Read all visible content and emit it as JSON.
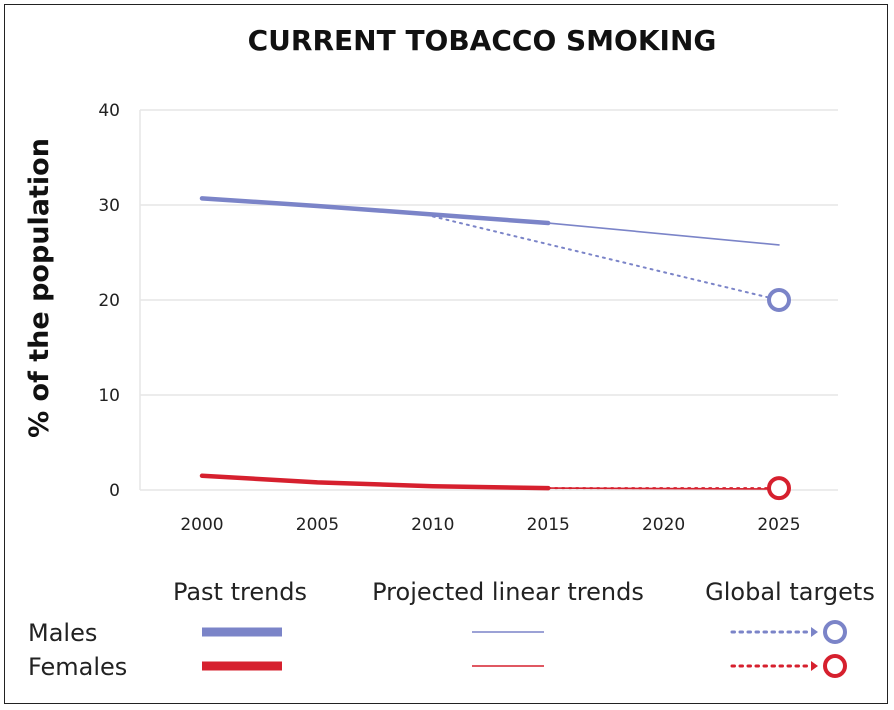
{
  "chart_data": {
    "type": "line",
    "title": "CURRENT TOBACCO SMOKING",
    "xlabel": "",
    "ylabel": "% of the population",
    "x_ticks": [
      "2000",
      "2005",
      "2010",
      "2015",
      "2020",
      "2025"
    ],
    "y_ticks": [
      "0",
      "10",
      "20",
      "30",
      "40"
    ],
    "xlim": [
      2000,
      2025
    ],
    "ylim": [
      0,
      40
    ],
    "grid": "horizontal",
    "colors": {
      "males": "#7b84c8",
      "females": "#d6202e",
      "grid": "#e6e6e6"
    },
    "series": [
      {
        "name": "Males",
        "kind": "past",
        "x": [
          2000,
          2005,
          2010,
          2015
        ],
        "y": [
          30.7,
          29.9,
          29.0,
          28.1
        ]
      },
      {
        "name": "Females",
        "kind": "past",
        "x": [
          2000,
          2005,
          2010,
          2015
        ],
        "y": [
          1.5,
          0.8,
          0.4,
          0.2
        ]
      },
      {
        "name": "Males",
        "kind": "projected",
        "x": [
          2015,
          2025
        ],
        "y": [
          28.1,
          25.8
        ]
      },
      {
        "name": "Females",
        "kind": "projected",
        "x": [
          2015,
          2025
        ],
        "y": [
          0.2,
          0.1
        ]
      },
      {
        "name": "Males",
        "kind": "target",
        "x": [
          2010,
          2025
        ],
        "y": [
          28.8,
          20.0
        ]
      },
      {
        "name": "Females",
        "kind": "target",
        "x": [
          2015,
          2025
        ],
        "y": [
          0.2,
          0.2
        ]
      }
    ],
    "targets": [
      {
        "name": "Males",
        "x": 2025,
        "y": 20.0
      },
      {
        "name": "Females",
        "x": 2025,
        "y": 0.2
      }
    ],
    "legend": {
      "placement": "bottom",
      "column_headers": [
        "Past trends",
        "Projected linear trends",
        "Global targets"
      ],
      "row_labels": [
        "Males",
        "Females"
      ]
    }
  }
}
